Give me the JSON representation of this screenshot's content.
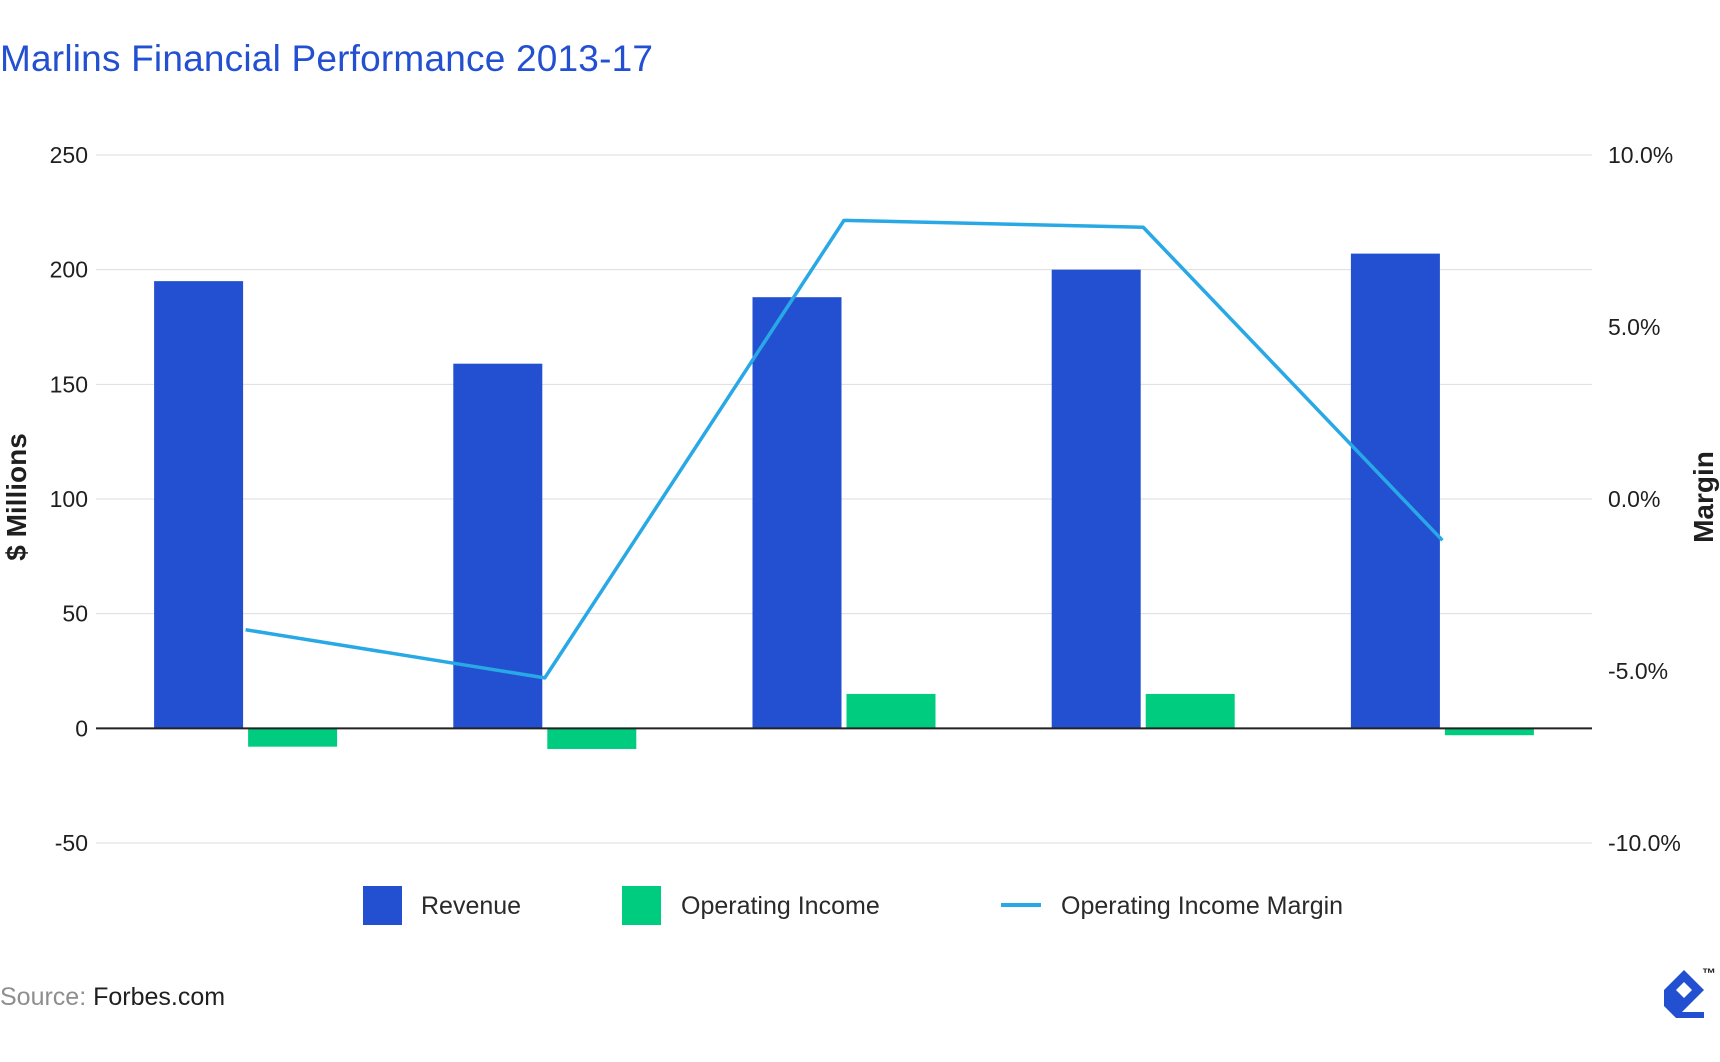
{
  "title": "Marlins Financial Performance 2013-17",
  "source": {
    "label": "Source:",
    "value": "Forbes.com"
  },
  "brand": {
    "mark": "toptal-logo-icon",
    "tm": "™"
  },
  "colors": {
    "title": "#2350d1",
    "revenue": "#2350d1",
    "operating_income": "#00cc7f",
    "margin": "#29a8e6",
    "grid": "#dddddd",
    "zero_line": "#222222"
  },
  "chart_data": {
    "type": "bar",
    "title": "Marlins Financial Performance 2013-17",
    "xlabel": "",
    "ylabel": "$ Millions",
    "y2label": "Margin",
    "ylim": [
      -50,
      250
    ],
    "y_ticks": [
      250,
      200,
      150,
      100,
      50,
      0,
      -50
    ],
    "y2lim": [
      -10.0,
      10.0
    ],
    "y2_ticks": [
      "10.0%",
      "5.0%",
      "0.0%",
      "-5.0%",
      "-10.0%"
    ],
    "grid": true,
    "legend_position": "bottom",
    "categories": [
      "",
      "",
      "",
      "",
      ""
    ],
    "series": [
      {
        "name": "Revenue",
        "type": "bar",
        "axis": "left",
        "values": [
          195,
          159,
          188,
          200,
          207
        ]
      },
      {
        "name": "Operating Income",
        "type": "bar",
        "axis": "left",
        "values": [
          -8,
          -9,
          15,
          15,
          -3
        ]
      },
      {
        "name": "Operating Income Margin",
        "type": "line",
        "axis": "right",
        "unit": "%",
        "values": [
          -3.8,
          -5.2,
          8.1,
          7.9,
          -1.2
        ]
      }
    ]
  }
}
